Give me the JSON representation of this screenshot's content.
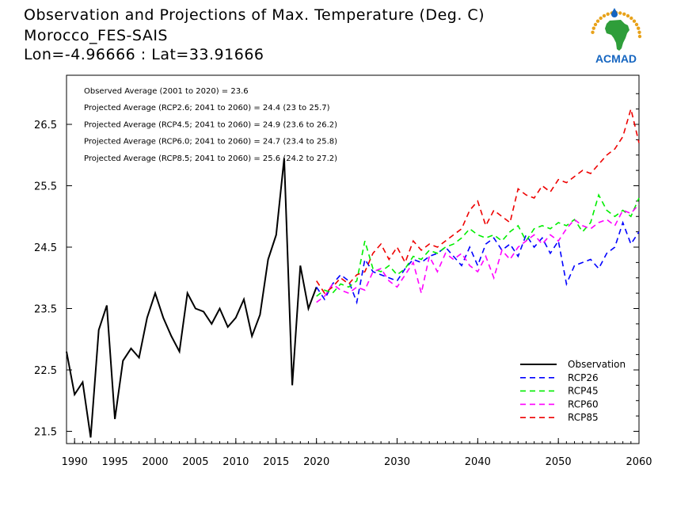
{
  "title_lines": [
    "Observation and Projections of Max. Temperature (Deg. C)",
    "Morocco_FES-SAIS",
    "Lon=-4.96666 : Lat=33.91666"
  ],
  "logo_text": "ACMAD",
  "colors": {
    "observation": "#000000",
    "rcp26": "#0000ff",
    "rcp45": "#00ee00",
    "rcp60": "#ff00ff",
    "rcp85": "#ee0000",
    "logo_blue": "#1565c0",
    "logo_green": "#2e9e3a",
    "logo_gold": "#e8a21a"
  },
  "chart_data": {
    "type": "line",
    "xlim": [
      1989,
      2060
    ],
    "ylim": [
      21.3,
      27.3
    ],
    "xticks": [
      "1990",
      "1995",
      "2000",
      "2005",
      "2010",
      "2015",
      "2020",
      "2030",
      "2040",
      "2050",
      "2060"
    ],
    "yticks": [
      "21.5",
      "22.5",
      "23.5",
      "24.5",
      "25.5",
      "26.5"
    ],
    "annotations": [
      "Observed Average (2001 to 2020) = 23.6",
      "Projected Average (RCP2.6; 2041 to 2060) = 24.4 (23 to 25.7)",
      "Projected Average (RCP4.5; 2041 to 2060) = 24.9 (23.6 to 26.2)",
      "Projected Average (RCP6.0; 2041 to 2060) = 24.7 (23.4 to 25.8)",
      "Projected Average (RCP8.5; 2041 to 2060) = 25.6 (24.2 to 27.2)"
    ],
    "legend_position": "bottom-right",
    "series": [
      {
        "name": "Observation",
        "style": "solid",
        "x": [
          1989,
          1990,
          1991,
          1992,
          1993,
          1994,
          1995,
          1996,
          1997,
          1998,
          1999,
          2000,
          2001,
          2002,
          2003,
          2004,
          2005,
          2006,
          2007,
          2008,
          2009,
          2010,
          2011,
          2012,
          2013,
          2014,
          2015,
          2016,
          2017,
          2018,
          2019,
          2020
        ],
        "y": [
          22.8,
          22.1,
          22.3,
          21.4,
          23.15,
          23.55,
          21.7,
          22.65,
          22.85,
          22.7,
          23.35,
          23.75,
          23.35,
          23.05,
          22.8,
          23.75,
          23.5,
          23.45,
          23.25,
          23.5,
          23.2,
          23.35,
          23.65,
          23.05,
          23.4,
          24.3,
          24.7,
          25.95,
          22.25,
          24.2,
          23.5,
          23.85
        ]
      },
      {
        "name": "RCP26",
        "style": "dashed",
        "x": [
          2020,
          2021,
          2022,
          2023,
          2024,
          2025,
          2026,
          2027,
          2028,
          2029,
          2030,
          2031,
          2032,
          2033,
          2034,
          2035,
          2036,
          2037,
          2038,
          2039,
          2040,
          2041,
          2042,
          2043,
          2044,
          2045,
          2046,
          2047,
          2048,
          2049,
          2050,
          2051,
          2052,
          2053,
          2054,
          2055,
          2056,
          2057,
          2058,
          2059,
          2060
        ],
        "y": [
          23.85,
          23.65,
          23.9,
          24.05,
          23.95,
          23.6,
          24.3,
          24.1,
          24.05,
          24.0,
          23.95,
          24.15,
          24.3,
          24.25,
          24.35,
          24.4,
          24.5,
          24.35,
          24.2,
          24.5,
          24.2,
          24.55,
          24.65,
          24.45,
          24.55,
          24.35,
          24.7,
          24.5,
          24.65,
          24.4,
          24.6,
          23.9,
          24.2,
          24.25,
          24.3,
          24.15,
          24.4,
          24.5,
          24.9,
          24.55,
          24.75
        ]
      },
      {
        "name": "RCP45",
        "style": "dashed",
        "x": [
          2020,
          2021,
          2022,
          2023,
          2024,
          2025,
          2026,
          2027,
          2028,
          2029,
          2030,
          2031,
          2032,
          2033,
          2034,
          2035,
          2036,
          2037,
          2038,
          2039,
          2040,
          2041,
          2042,
          2043,
          2044,
          2045,
          2046,
          2047,
          2048,
          2049,
          2050,
          2051,
          2052,
          2053,
          2054,
          2055,
          2056,
          2057,
          2058,
          2059,
          2060
        ],
        "y": [
          23.7,
          23.8,
          23.75,
          23.9,
          23.85,
          23.95,
          24.6,
          24.15,
          24.1,
          24.2,
          24.05,
          24.15,
          24.35,
          24.3,
          24.45,
          24.4,
          24.5,
          24.55,
          24.65,
          24.8,
          24.7,
          24.65,
          24.7,
          24.6,
          24.75,
          24.85,
          24.6,
          24.8,
          24.85,
          24.8,
          24.9,
          24.85,
          24.95,
          24.75,
          24.9,
          25.35,
          25.1,
          25.0,
          25.1,
          25.0,
          25.3
        ]
      },
      {
        "name": "RCP60",
        "style": "dashed",
        "x": [
          2020,
          2021,
          2022,
          2023,
          2024,
          2025,
          2026,
          2027,
          2028,
          2029,
          2030,
          2031,
          2032,
          2033,
          2034,
          2035,
          2036,
          2037,
          2038,
          2039,
          2040,
          2041,
          2042,
          2043,
          2044,
          2045,
          2046,
          2047,
          2048,
          2049,
          2050,
          2051,
          2052,
          2053,
          2054,
          2055,
          2056,
          2057,
          2058,
          2059,
          2060
        ],
        "y": [
          23.6,
          23.7,
          23.9,
          23.8,
          23.75,
          23.85,
          23.8,
          24.1,
          24.15,
          23.95,
          23.85,
          24.05,
          24.25,
          23.75,
          24.35,
          24.1,
          24.4,
          24.3,
          24.4,
          24.2,
          24.1,
          24.35,
          24.0,
          24.45,
          24.3,
          24.5,
          24.6,
          24.7,
          24.55,
          24.7,
          24.6,
          24.8,
          24.95,
          24.85,
          24.8,
          24.9,
          24.95,
          24.85,
          25.1,
          25.05,
          25.2
        ]
      },
      {
        "name": "RCP85",
        "style": "dashed",
        "x": [
          2020,
          2021,
          2022,
          2023,
          2024,
          2025,
          2026,
          2027,
          2028,
          2029,
          2030,
          2031,
          2032,
          2033,
          2034,
          2035,
          2036,
          2037,
          2038,
          2039,
          2040,
          2041,
          2042,
          2043,
          2044,
          2045,
          2046,
          2047,
          2048,
          2049,
          2050,
          2051,
          2052,
          2053,
          2054,
          2055,
          2056,
          2057,
          2058,
          2059,
          2060
        ],
        "y": [
          23.95,
          23.75,
          23.85,
          24.0,
          23.9,
          24.05,
          24.1,
          24.4,
          24.55,
          24.3,
          24.5,
          24.25,
          24.6,
          24.45,
          24.55,
          24.5,
          24.6,
          24.7,
          24.8,
          25.1,
          25.25,
          24.85,
          25.1,
          25.0,
          24.9,
          25.45,
          25.35,
          25.3,
          25.5,
          25.4,
          25.6,
          25.55,
          25.65,
          25.75,
          25.7,
          25.85,
          26.0,
          26.1,
          26.3,
          26.75,
          26.2
        ]
      }
    ]
  }
}
